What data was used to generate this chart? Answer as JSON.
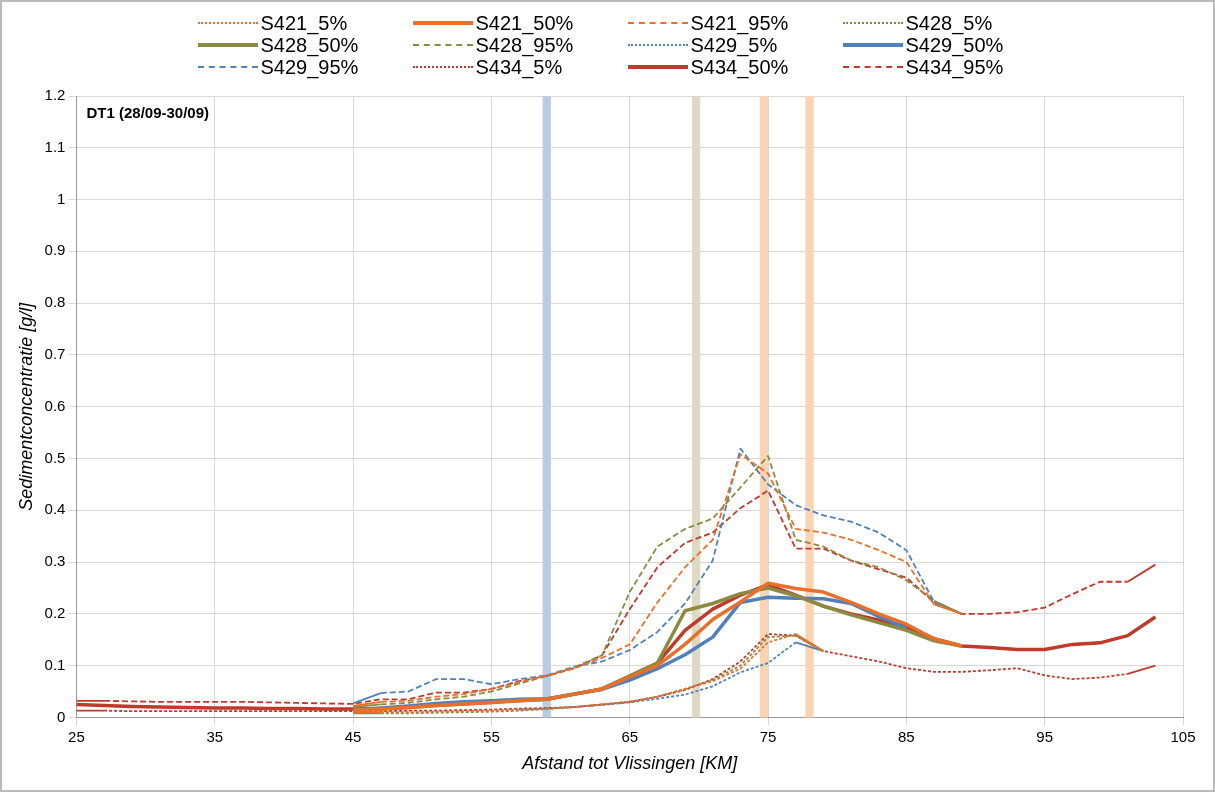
{
  "chart_data": {
    "type": "line",
    "xlabel": "Afstand tot Vlissingen [KM]",
    "ylabel": "Sedimentconcentratie [g/l]",
    "annotations": [
      "DT1 (28/09-30/09)"
    ],
    "xlim": [
      25,
      105
    ],
    "xticks": [
      25,
      35,
      45,
      55,
      65,
      75,
      85,
      95,
      105
    ],
    "ylim": [
      0,
      1.2
    ],
    "yticks": [
      0,
      0.1,
      0.2,
      0.3,
      0.4,
      0.5,
      0.6,
      0.7,
      0.8,
      0.9,
      1,
      1.1,
      1.2
    ],
    "grid": true,
    "legend": "top",
    "marker": "none",
    "bands": [
      {
        "axis": "x",
        "from": 58.7,
        "to": 59.3,
        "color": "#b8cce4"
      },
      {
        "axis": "x",
        "from": 69.5,
        "to": 70.1,
        "color": "#ddd9c3"
      },
      {
        "axis": "x",
        "from": 74.4,
        "to": 75.0,
        "color": "#fbd4b4"
      },
      {
        "axis": "x",
        "from": 77.7,
        "to": 78.3,
        "color": "#fbd4b4"
      }
    ],
    "series": [
      {
        "name": "S421_5%",
        "color": "#e8702a",
        "line_style": "dotted",
        "x": [
          45,
          47,
          49,
          51,
          53,
          55,
          57,
          59,
          61,
          63,
          65,
          67,
          69,
          71,
          73,
          75,
          77,
          79
        ],
        "values": [
          0.01,
          0.01,
          0.01,
          0.011,
          0.012,
          0.013,
          0.015,
          0.017,
          0.02,
          0.025,
          0.03,
          0.04,
          0.055,
          0.07,
          0.094,
          0.145,
          0.161,
          0.128
        ]
      },
      {
        "name": "S421_50%",
        "color": "#e8702a",
        "line_style": "solid",
        "x": [
          45,
          47,
          49,
          51,
          53,
          55,
          57,
          59,
          61,
          63,
          65,
          67,
          69,
          71,
          73,
          75,
          77,
          79,
          81,
          83,
          85,
          87,
          89
        ],
        "values": [
          0.014,
          0.016,
          0.019,
          0.023,
          0.026,
          0.029,
          0.032,
          0.035,
          0.045,
          0.055,
          0.078,
          0.1,
          0.141,
          0.189,
          0.223,
          0.259,
          0.249,
          0.242,
          0.222,
          0.2,
          0.18,
          0.152,
          0.138
        ]
      },
      {
        "name": "S421_95%",
        "color": "#e8702a",
        "line_style": "dashed",
        "x": [
          45,
          47,
          49,
          51,
          53,
          55,
          57,
          59,
          61,
          63,
          65,
          67,
          69,
          71,
          73,
          75,
          77,
          79,
          81,
          83,
          85,
          87,
          89
        ],
        "values": [
          0.022,
          0.03,
          0.032,
          0.04,
          0.045,
          0.055,
          0.068,
          0.081,
          0.095,
          0.115,
          0.141,
          0.222,
          0.29,
          0.343,
          0.508,
          0.471,
          0.364,
          0.357,
          0.343,
          0.323,
          0.3,
          0.218,
          0.2
        ]
      },
      {
        "name": "S428_5%",
        "color": "#8c8a40",
        "line_style": "dotted",
        "x": [
          45,
          47,
          49,
          51,
          53,
          55,
          57,
          59,
          61,
          63,
          65,
          67,
          69,
          71,
          73,
          75,
          77,
          79
        ],
        "values": [
          0.008,
          0.008,
          0.008,
          0.009,
          0.01,
          0.011,
          0.013,
          0.016,
          0.02,
          0.025,
          0.03,
          0.04,
          0.055,
          0.072,
          0.1,
          0.155,
          0.158,
          0.128
        ]
      },
      {
        "name": "S428_50%",
        "color": "#8c8a40",
        "line_style": "solid",
        "x": [
          45,
          47,
          49,
          51,
          53,
          55,
          57,
          59,
          61,
          63,
          65,
          67,
          69,
          71,
          73,
          75,
          77,
          79,
          81,
          83,
          85,
          87,
          89
        ],
        "values": [
          0.014,
          0.016,
          0.019,
          0.023,
          0.026,
          0.029,
          0.032,
          0.035,
          0.045,
          0.055,
          0.08,
          0.105,
          0.206,
          0.22,
          0.239,
          0.25,
          0.235,
          0.215,
          0.198,
          0.183,
          0.168,
          0.148,
          0.138
        ]
      },
      {
        "name": "S428_95%",
        "color": "#8c8a40",
        "line_style": "dashed",
        "x": [
          45,
          47,
          49,
          51,
          53,
          55,
          57,
          59,
          61,
          63,
          65,
          67,
          69,
          71,
          73,
          75,
          77,
          79,
          81,
          83,
          85,
          87,
          89
        ],
        "values": [
          0.02,
          0.025,
          0.028,
          0.035,
          0.04,
          0.05,
          0.065,
          0.08,
          0.097,
          0.12,
          0.242,
          0.33,
          0.364,
          0.384,
          0.444,
          0.505,
          0.343,
          0.33,
          0.303,
          0.29,
          0.265,
          0.225,
          0.2
        ]
      },
      {
        "name": "S429_5%",
        "color": "#4f81bd",
        "line_style": "dotted",
        "x": [
          57,
          59,
          61,
          63,
          65,
          67,
          69,
          71,
          73,
          75,
          77,
          79
        ],
        "values": [
          0.015,
          0.017,
          0.02,
          0.024,
          0.029,
          0.036,
          0.044,
          0.06,
          0.087,
          0.105,
          0.145,
          0.128
        ]
      },
      {
        "name": "S429_50%",
        "color": "#4f81bd",
        "line_style": "solid",
        "x": [
          45,
          47,
          49,
          51,
          53,
          55,
          57,
          59,
          61,
          63,
          65,
          67,
          69,
          71,
          73,
          75,
          77,
          79,
          81,
          83,
          85
        ],
        "values": [
          0.015,
          0.018,
          0.022,
          0.027,
          0.03,
          0.032,
          0.035,
          0.036,
          0.045,
          0.054,
          0.072,
          0.094,
          0.121,
          0.155,
          0.222,
          0.232,
          0.23,
          0.229,
          0.22,
          0.195,
          0.172
        ]
      },
      {
        "name": "S429_95%",
        "color": "#4f81bd",
        "line_style": "dashed",
        "x": [
          45,
          47,
          49,
          51,
          53,
          55,
          57,
          59,
          61,
          63,
          65,
          67,
          69,
          71,
          73,
          75,
          77,
          79,
          81,
          83,
          85,
          87,
          89
        ],
        "values": [
          0.027,
          0.047,
          0.05,
          0.074,
          0.074,
          0.064,
          0.074,
          0.081,
          0.098,
          0.108,
          0.13,
          0.165,
          0.22,
          0.303,
          0.519,
          0.45,
          0.41,
          0.39,
          0.378,
          0.357,
          0.323,
          0.223,
          0.2
        ]
      },
      {
        "name": "S434_5%",
        "color": "#c0392b",
        "line_style": "dotted",
        "x": [
          25,
          27,
          29,
          31,
          33,
          35,
          37,
          39,
          41,
          43,
          45,
          47,
          49,
          51,
          53,
          55,
          57,
          59,
          61,
          63,
          65,
          67,
          69,
          71,
          73,
          75,
          77,
          79,
          81,
          83,
          85,
          87,
          89,
          91,
          93,
          95,
          97,
          99,
          101,
          103
        ],
        "values": [
          0.013,
          0.013,
          0.012,
          0.012,
          0.012,
          0.012,
          0.012,
          0.012,
          0.012,
          0.012,
          0.012,
          0.012,
          0.013,
          0.013,
          0.014,
          0.015,
          0.017,
          0.018,
          0.02,
          0.025,
          0.03,
          0.04,
          0.053,
          0.074,
          0.108,
          0.161,
          0.158,
          0.128,
          0.118,
          0.108,
          0.095,
          0.088,
          0.088,
          0.091,
          0.095,
          0.081,
          0.074,
          0.077,
          0.084,
          0.1
        ]
      },
      {
        "name": "S434_50%",
        "color": "#c0392b",
        "line_style": "solid",
        "x": [
          25,
          27,
          29,
          31,
          33,
          35,
          37,
          39,
          41,
          43,
          45,
          47,
          49,
          51,
          53,
          55,
          57,
          59,
          61,
          63,
          65,
          67,
          69,
          71,
          73,
          75,
          77,
          79,
          81,
          83,
          85,
          87,
          89,
          91,
          93,
          95,
          97,
          99,
          101,
          103
        ],
        "values": [
          0.025,
          0.023,
          0.021,
          0.02,
          0.019,
          0.018,
          0.018,
          0.017,
          0.017,
          0.016,
          0.016,
          0.017,
          0.02,
          0.024,
          0.027,
          0.03,
          0.033,
          0.035,
          0.045,
          0.055,
          0.08,
          0.105,
          0.168,
          0.209,
          0.236,
          0.256,
          0.236,
          0.215,
          0.2,
          0.188,
          0.175,
          0.152,
          0.138,
          0.135,
          0.131,
          0.131,
          0.141,
          0.144,
          0.158,
          0.194
        ]
      },
      {
        "name": "S434_95%",
        "color": "#c0392b",
        "line_style": "dashed",
        "x": [
          25,
          27,
          29,
          31,
          33,
          35,
          37,
          39,
          41,
          43,
          45,
          47,
          49,
          51,
          53,
          55,
          57,
          59,
          61,
          63,
          65,
          67,
          69,
          71,
          73,
          75,
          77,
          79,
          81,
          83,
          85,
          87,
          89,
          91,
          93,
          95,
          97,
          99,
          101,
          103
        ],
        "values": [
          0.032,
          0.032,
          0.031,
          0.03,
          0.03,
          0.03,
          0.03,
          0.029,
          0.028,
          0.027,
          0.026,
          0.035,
          0.035,
          0.048,
          0.048,
          0.055,
          0.07,
          0.08,
          0.095,
          0.12,
          0.209,
          0.29,
          0.337,
          0.357,
          0.404,
          0.438,
          0.326,
          0.326,
          0.303,
          0.286,
          0.27,
          0.222,
          0.2,
          0.2,
          0.203,
          0.212,
          0.238,
          0.262,
          0.262,
          0.295
        ]
      }
    ]
  }
}
